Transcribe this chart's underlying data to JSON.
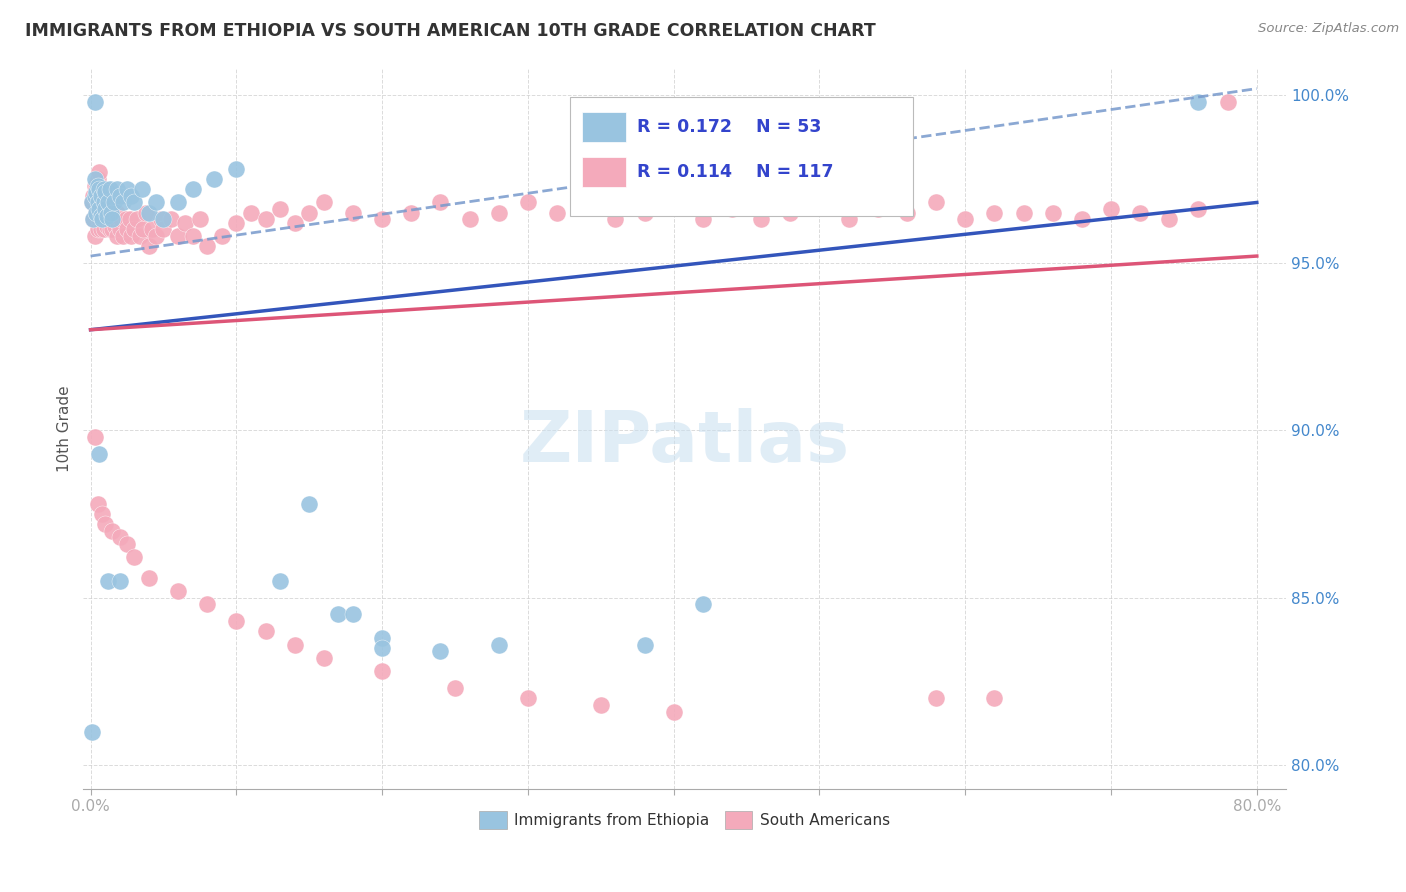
{
  "title": "IMMIGRANTS FROM ETHIOPIA VS SOUTH AMERICAN 10TH GRADE CORRELATION CHART",
  "source": "Source: ZipAtlas.com",
  "ylabel": "10th Grade",
  "blue_color": "#99C4E0",
  "pink_color": "#F4AABB",
  "blue_line_color": "#3355BB",
  "pink_line_color": "#DD5577",
  "blue_dash_color": "#7799CC",
  "watermark_color": "#C8DFF0",
  "watermark_text": "ZIPatlas",
  "legend_r_blue": "R = 0.172",
  "legend_n_blue": "N = 53",
  "legend_r_pink": "R = 0.114",
  "legend_n_pink": "N = 117",
  "ytick_color": "#4488CC",
  "grid_color": "#CCCCCC",
  "title_color": "#333333",
  "source_color": "#888888"
}
